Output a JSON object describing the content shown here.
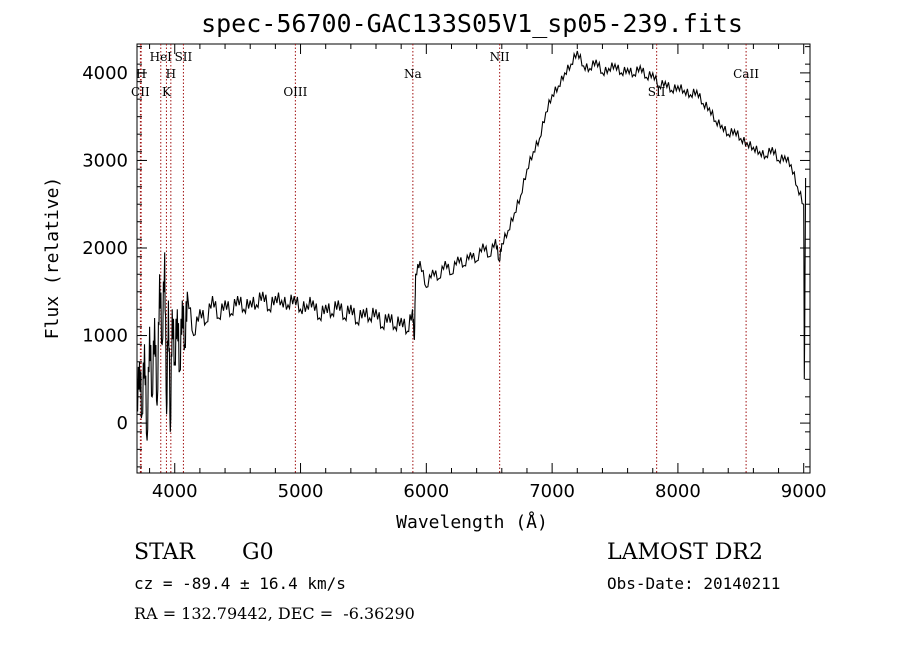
{
  "chart_data": {
    "type": "line",
    "title": "spec-56700-GAC133S05V1_sp05-239.fits",
    "xlabel": "Wavelength (Å)",
    "ylabel": "Flux (relative)",
    "xlim": [
      3700,
      9050
    ],
    "ylim": [
      -570,
      4330
    ],
    "x_ticks": [
      4000,
      5000,
      6000,
      7000,
      8000,
      9000
    ],
    "y_ticks": [
      0,
      1000,
      2000,
      3000,
      4000
    ],
    "series": [
      {
        "color": "#000000",
        "points": [
          [
            3700,
            200
          ],
          [
            3720,
            700
          ],
          [
            3740,
            100
          ],
          [
            3760,
            900
          ],
          [
            3780,
            -200
          ],
          [
            3800,
            1100
          ],
          [
            3820,
            300
          ],
          [
            3840,
            1200
          ],
          [
            3860,
            200
          ],
          [
            3880,
            1700
          ],
          [
            3900,
            900
          ],
          [
            3920,
            1950
          ],
          [
            3935,
            100
          ],
          [
            3950,
            1400
          ],
          [
            3965,
            -100
          ],
          [
            3980,
            1300
          ],
          [
            4000,
            700
          ],
          [
            4020,
            1300
          ],
          [
            4040,
            600
          ],
          [
            4060,
            1400
          ],
          [
            4080,
            900
          ],
          [
            4100,
            1500
          ],
          [
            4150,
            1000
          ],
          [
            4200,
            1300
          ],
          [
            4250,
            1150
          ],
          [
            4300,
            1450
          ],
          [
            4350,
            1200
          ],
          [
            4400,
            1400
          ],
          [
            4450,
            1250
          ],
          [
            4500,
            1450
          ],
          [
            4550,
            1300
          ],
          [
            4600,
            1400
          ],
          [
            4650,
            1350
          ],
          [
            4700,
            1500
          ],
          [
            4750,
            1300
          ],
          [
            4800,
            1450
          ],
          [
            4850,
            1400
          ],
          [
            4900,
            1350
          ],
          [
            4950,
            1450
          ],
          [
            5000,
            1300
          ],
          [
            5050,
            1350
          ],
          [
            5100,
            1400
          ],
          [
            5150,
            1200
          ],
          [
            5200,
            1350
          ],
          [
            5250,
            1250
          ],
          [
            5300,
            1400
          ],
          [
            5350,
            1200
          ],
          [
            5400,
            1350
          ],
          [
            5450,
            1150
          ],
          [
            5500,
            1300
          ],
          [
            5550,
            1200
          ],
          [
            5600,
            1300
          ],
          [
            5650,
            1100
          ],
          [
            5700,
            1250
          ],
          [
            5750,
            1100
          ],
          [
            5800,
            1200
          ],
          [
            5850,
            1050
          ],
          [
            5890,
            1300
          ],
          [
            5905,
            950
          ],
          [
            5915,
            1700
          ],
          [
            5950,
            1850
          ],
          [
            6000,
            1550
          ],
          [
            6050,
            1750
          ],
          [
            6100,
            1650
          ],
          [
            6150,
            1850
          ],
          [
            6200,
            1700
          ],
          [
            6250,
            1900
          ],
          [
            6300,
            1800
          ],
          [
            6350,
            1950
          ],
          [
            6400,
            1850
          ],
          [
            6450,
            2050
          ],
          [
            6500,
            1900
          ],
          [
            6550,
            2100
          ],
          [
            6580,
            1850
          ],
          [
            6600,
            2050
          ],
          [
            6650,
            2200
          ],
          [
            6700,
            2400
          ],
          [
            6750,
            2600
          ],
          [
            6800,
            2900
          ],
          [
            6850,
            3100
          ],
          [
            6900,
            3250
          ],
          [
            6950,
            3550
          ],
          [
            7000,
            3750
          ],
          [
            7050,
            3850
          ],
          [
            7100,
            4000
          ],
          [
            7150,
            4100
          ],
          [
            7200,
            4250
          ],
          [
            7250,
            4080
          ],
          [
            7300,
            4050
          ],
          [
            7350,
            4150
          ],
          [
            7400,
            4000
          ],
          [
            7450,
            4050
          ],
          [
            7500,
            4100
          ],
          [
            7550,
            4000
          ],
          [
            7600,
            4050
          ],
          [
            7650,
            3980
          ],
          [
            7700,
            4080
          ],
          [
            7750,
            3950
          ],
          [
            7800,
            4000
          ],
          [
            7850,
            3850
          ],
          [
            7900,
            3900
          ],
          [
            7950,
            3800
          ],
          [
            8000,
            3850
          ],
          [
            8050,
            3800
          ],
          [
            8100,
            3750
          ],
          [
            8150,
            3800
          ],
          [
            8200,
            3650
          ],
          [
            8250,
            3600
          ],
          [
            8300,
            3450
          ],
          [
            8350,
            3400
          ],
          [
            8400,
            3300
          ],
          [
            8450,
            3350
          ],
          [
            8500,
            3250
          ],
          [
            8550,
            3200
          ],
          [
            8600,
            3150
          ],
          [
            8650,
            3100
          ],
          [
            8700,
            3050
          ],
          [
            8750,
            3150
          ],
          [
            8800,
            3000
          ],
          [
            8850,
            3050
          ],
          [
            8900,
            2950
          ],
          [
            8950,
            2700
          ],
          [
            9000,
            2500
          ],
          [
            9005,
            500
          ],
          [
            9015,
            2800
          ]
        ]
      }
    ],
    "lines": [
      {
        "label": "CII",
        "wavelength": 3727,
        "row": "low"
      },
      {
        "label": "H",
        "wavelength": 3733,
        "row": "mid"
      },
      {
        "label": "HeI",
        "wavelength": 3889,
        "row": "high"
      },
      {
        "label": "K",
        "wavelength": 3934,
        "row": "low"
      },
      {
        "label": "H",
        "wavelength": 3969,
        "row": "mid"
      },
      {
        "label": "SII",
        "wavelength": 4069,
        "row": "high"
      },
      {
        "label": "OIII",
        "wavelength": 4959,
        "row": "low"
      },
      {
        "label": "Na",
        "wavelength": 5893,
        "row": "mid"
      },
      {
        "label": "NII",
        "wavelength": 6583,
        "row": "high"
      },
      {
        "label": "SII",
        "wavelength": 7831,
        "row": "low"
      },
      {
        "label": "CaII",
        "wavelength": 8542,
        "row": "mid"
      }
    ],
    "grid": false
  },
  "info": {
    "type": "STAR",
    "subclass": "G0",
    "survey": "LAMOST DR2",
    "cz": "cz = -89.4 ± 16.4 km/s",
    "obs_date": "Obs-Date: 20140211",
    "coords": "RA = 132.79442, DEC =  -6.36290"
  }
}
